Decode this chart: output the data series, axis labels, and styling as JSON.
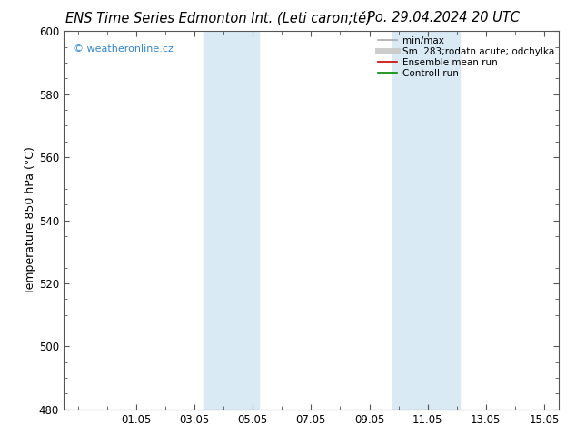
{
  "title_left": "ENS Time Series Edmonton Int. (Leti caron;tě)",
  "title_right": "Po. 29.04.2024 20 UTC",
  "ylabel": "Temperature 850 hPa (°C)",
  "ylim": [
    480,
    600
  ],
  "yticks": [
    480,
    500,
    520,
    540,
    560,
    580,
    600
  ],
  "xlim": [
    -0.5,
    16.5
  ],
  "xtick_labels": [
    "01.05",
    "03.05",
    "05.05",
    "07.05",
    "09.05",
    "11.05",
    "13.05",
    "15.05"
  ],
  "xtick_positions": [
    2,
    4,
    6,
    8,
    10,
    12,
    14,
    16
  ],
  "shade_bands": [
    {
      "xmin": 4.3,
      "xmax": 6.2
    },
    {
      "xmin": 10.8,
      "xmax": 13.1
    }
  ],
  "shade_color": "#daeaf5",
  "background_color": "#ffffff",
  "watermark": "© weatheronline.cz",
  "watermark_color": "#3388cc",
  "legend_entries": [
    {
      "label": "min/max",
      "color": "#aaaaaa",
      "lw": 1.2
    },
    {
      "label": "Sm  283;rodatn acute; odchylka",
      "color": "#cccccc",
      "lw": 5
    },
    {
      "label": "Ensemble mean run",
      "color": "#cc0000",
      "lw": 1.2
    },
    {
      "label": "Controll run",
      "color": "#008800",
      "lw": 1.2
    }
  ],
  "grid_color": "#cccccc",
  "title_fontsize": 10.5,
  "ylabel_fontsize": 9,
  "tick_fontsize": 8.5,
  "legend_fontsize": 7.5,
  "watermark_fontsize": 8
}
